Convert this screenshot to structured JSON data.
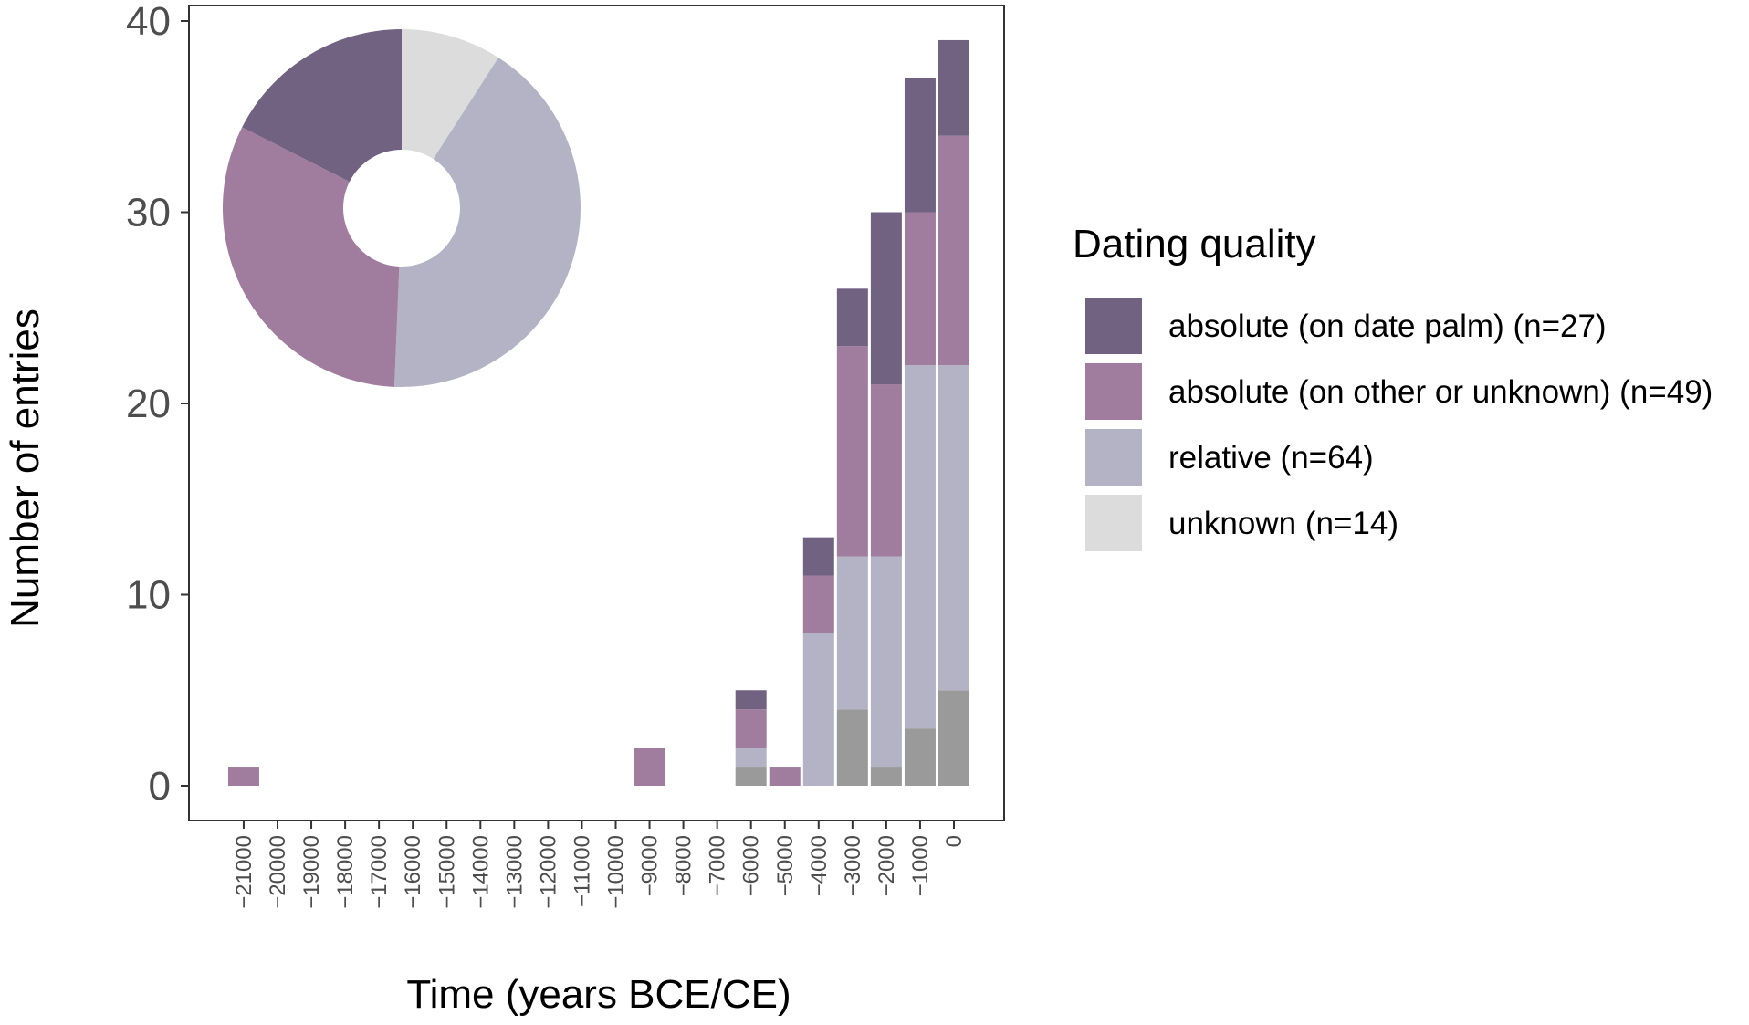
{
  "chart_data": {
    "type": "bar",
    "stacked": true,
    "xlabel": "Time (years BCE/CE)",
    "ylabel": "Number of entries",
    "ylim": [
      0,
      40
    ],
    "y_ticks": [
      0,
      10,
      20,
      30,
      40
    ],
    "grid": false,
    "x_ticks": [
      -21000,
      -20000,
      -19000,
      -18000,
      -17000,
      -16000,
      -15000,
      -14000,
      -13000,
      -12000,
      -11000,
      -10000,
      -9000,
      -8000,
      -7000,
      -6000,
      -5000,
      -4000,
      -3000,
      -2000,
      -1000,
      0
    ],
    "x_tick_labels": [
      "−21000",
      "−20000",
      "−19000",
      "−18000",
      "−17000",
      "−16000",
      "−15000",
      "−14000",
      "−13000",
      "−12000",
      "−11000",
      "−10000",
      "−9000",
      "−8000",
      "−7000",
      "−6000",
      "−5000",
      "−4000",
      "−3000",
      "−2000",
      "−1000",
      "0"
    ],
    "x": [
      -21000,
      -9000,
      -6000,
      -5000,
      -4000,
      -3000,
      -2000,
      -1000,
      0
    ],
    "series": [
      {
        "name": "unknown (n=14)",
        "color": "#9a9a9a",
        "values": [
          0,
          0,
          1,
          0,
          0,
          4,
          1,
          3,
          5
        ]
      },
      {
        "name": "relative (n=64)",
        "color": "#b4b3c6",
        "values": [
          0,
          0,
          1,
          0,
          8,
          8,
          11,
          19,
          17
        ]
      },
      {
        "name": "absolute (on other or unknown) (n=49)",
        "color": "#a07c9e",
        "values": [
          1,
          2,
          2,
          1,
          3,
          11,
          9,
          8,
          12
        ]
      },
      {
        "name": "absolute (on date palm) (n=27)",
        "color": "#726282",
        "values": [
          0,
          0,
          1,
          0,
          2,
          3,
          9,
          7,
          5
        ]
      }
    ],
    "legend": {
      "title": "Dating quality",
      "placement": "right",
      "items": [
        {
          "label": "absolute (on date palm) (n=27)",
          "color": "#726282"
        },
        {
          "label": "absolute (on other or unknown) (n=49)",
          "color": "#a07c9e"
        },
        {
          "label": "relative (n=64)",
          "color": "#b4b3c6"
        },
        {
          "label": "unknown (n=14)",
          "color": "#dcdcdc"
        }
      ]
    },
    "inset": {
      "type": "donut",
      "slices": [
        {
          "label": "absolute (on date palm)",
          "value": 27,
          "color": "#726282"
        },
        {
          "label": "absolute (on other or unknown)",
          "value": 49,
          "color": "#a07c9e"
        },
        {
          "label": "relative",
          "value": 64,
          "color": "#b4b3c6"
        },
        {
          "label": "unknown",
          "value": 14,
          "color": "#dcdcdc"
        }
      ]
    }
  }
}
